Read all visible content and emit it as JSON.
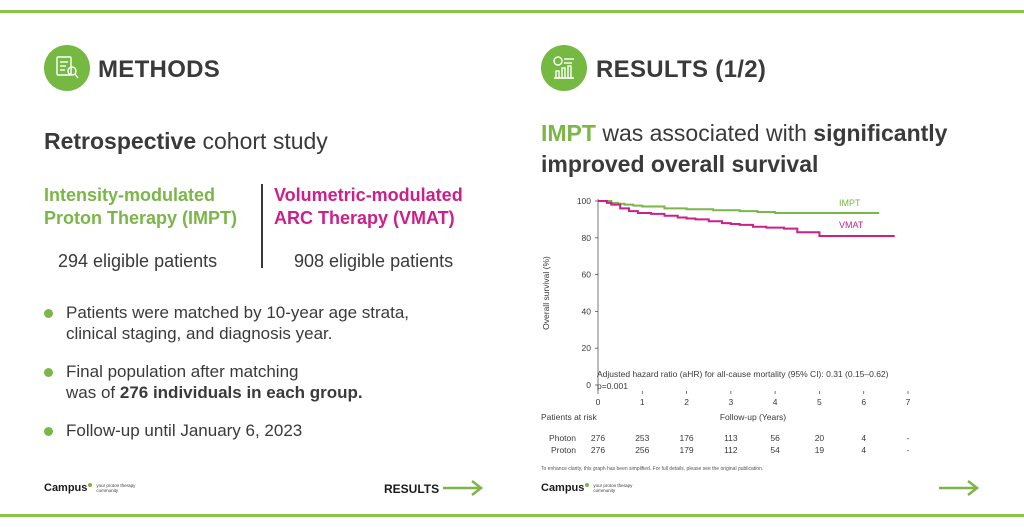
{
  "colors": {
    "green": "#7ab648",
    "magenta": "#cc1f8a",
    "rule": "#8cc34b",
    "dark": "#3a3a3a"
  },
  "left": {
    "icon": "clipboard-analysis-icon",
    "title": "METHODS",
    "study_bold": "Retrospective",
    "study_rest": " cohort study",
    "impt_arm": {
      "line1": "Intensity-modulated",
      "line2": "Proton Therapy (IMPT)",
      "count": "294 eligible patients"
    },
    "vmat_arm": {
      "line1": "Volumetric-modulated",
      "line2": "ARC Therapy (VMAT)",
      "count": "908 eligible patients"
    },
    "bullets": [
      {
        "line1": "Patients were matched by 10-year age strata,",
        "line2": "clinical staging, and diagnosis year."
      },
      {
        "line1": "Final population after matching",
        "line2_pre": "was of ",
        "line2_bold": "276 individuals in each group."
      },
      {
        "line1": "Follow-up until January 6, 2023"
      }
    ],
    "brand": {
      "name": "Campus",
      "tagline": "your proton therapy community"
    },
    "nav_label": "RESULTS"
  },
  "right": {
    "icon": "chart-report-icon",
    "title": "RESULTS (1/2)",
    "headline": {
      "accent": "IMPT",
      "mid": " was associated with ",
      "bold1": "significantly",
      "bold2": "improved overall survival"
    },
    "footnote": "To enhance clarity, this graph has been simplified. For full details, please see the original publication.",
    "brand": {
      "name": "Campus",
      "tagline": "your proton therapy community"
    }
  },
  "chart_data": {
    "type": "line",
    "ylabel": "Overall survival (%)",
    "xlabel": "Follow-up (Years)",
    "xlim": [
      0,
      7
    ],
    "ylim": [
      0,
      100
    ],
    "xticks": [
      0,
      1,
      2,
      3,
      4,
      5,
      6,
      7
    ],
    "yticks": [
      0,
      20,
      40,
      60,
      80,
      100
    ],
    "series": [
      {
        "name": "IMPT",
        "color": "#7ab648",
        "x": [
          0,
          0.2,
          0.3,
          0.45,
          0.6,
          0.8,
          1.0,
          1.5,
          2.0,
          2.6,
          3.0,
          3.2,
          3.6,
          4.0,
          4.5,
          5.0,
          5.5,
          6.0,
          6.35
        ],
        "y": [
          100,
          100,
          99,
          98.5,
          98,
          97.5,
          97,
          96,
          95.5,
          95,
          95,
          94.5,
          94,
          93.5,
          93.5,
          93.5,
          93.5,
          93.5,
          93.5
        ]
      },
      {
        "name": "VMAT",
        "color": "#cc1f8a",
        "x": [
          0,
          0.2,
          0.3,
          0.5,
          0.7,
          0.9,
          1.2,
          1.5,
          1.8,
          2.0,
          2.2,
          2.5,
          2.8,
          3.0,
          3.2,
          3.5,
          3.8,
          4.2,
          4.5,
          4.8,
          5.0,
          5.5,
          6.0,
          6.5,
          6.7
        ],
        "y": [
          100,
          99,
          98,
          96,
          94.5,
          93.5,
          93,
          92,
          91,
          90.5,
          90,
          89,
          88,
          87.5,
          87,
          86,
          85.5,
          85,
          83,
          83,
          81,
          81,
          81,
          81,
          81
        ]
      }
    ],
    "annotation_line1": "Adjusted hazard ratio (aHR) for all-cause mortality (95% CI): 0.31 (0.15–0.62)",
    "annotation_line2": "p=0.001",
    "risk_table": {
      "title": "Patients at risk",
      "rows": [
        {
          "label": "Photon",
          "values": [
            "276",
            "253",
            "176",
            "113",
            "56",
            "20",
            "4",
            "-"
          ]
        },
        {
          "label": "Proton",
          "values": [
            "276",
            "256",
            "179",
            "112",
            "54",
            "19",
            "4",
            "-"
          ]
        }
      ]
    }
  }
}
